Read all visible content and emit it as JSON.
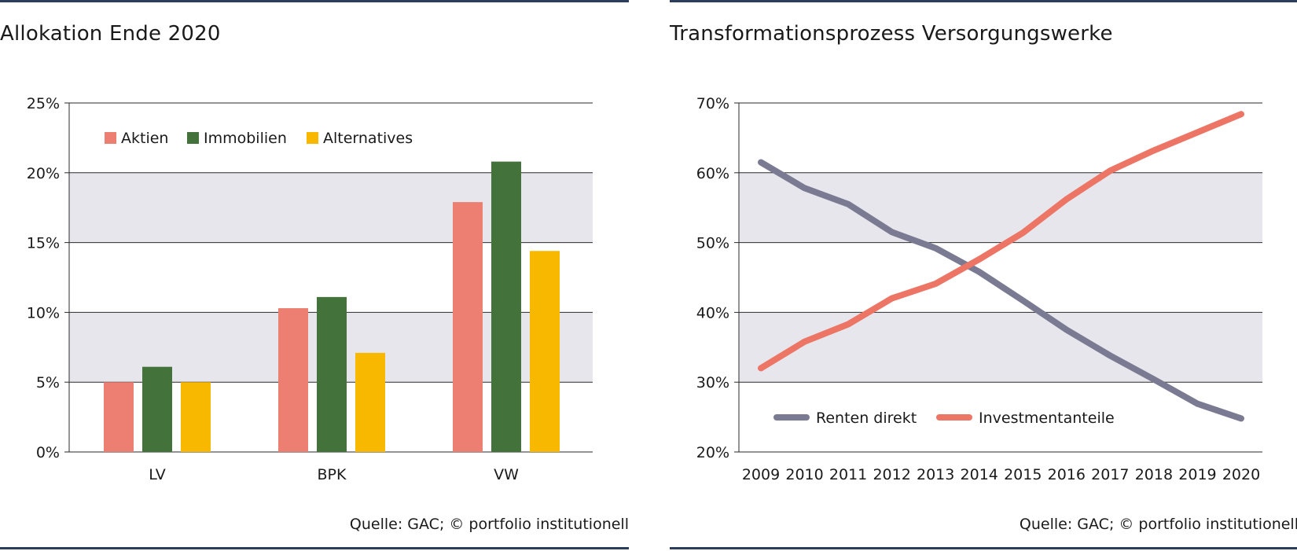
{
  "left": {
    "title": "Allokation Ende 2020",
    "source": "Quelle: GAC; © portfolio institutionell"
  },
  "right": {
    "title": "Transformationsprozess Versorgungswerke",
    "source": "Quelle: GAC; © portfolio institutionell"
  },
  "colors": {
    "band": "#e6e6ec",
    "aktien": "#ec7f72",
    "immobilien": "#43723a",
    "alternatives": "#f8b800",
    "renten": "#7a7b92",
    "investment": "#ec7565",
    "rule": "#2c3e5c"
  },
  "chart_data": [
    {
      "type": "bar",
      "title": "Allokation Ende 2020",
      "categories": [
        "LV",
        "BPK",
        "VW"
      ],
      "series": [
        {
          "name": "Aktien",
          "values": [
            5.0,
            10.3,
            17.9
          ],
          "color": "#ec7f72"
        },
        {
          "name": "Immobilien",
          "values": [
            6.1,
            11.1,
            20.8
          ],
          "color": "#43723a"
        },
        {
          "name": "Alternatives",
          "values": [
            5.0,
            7.1,
            14.4
          ],
          "color": "#f8b800"
        }
      ],
      "ylim": [
        0,
        25
      ],
      "yticks": [
        0,
        5,
        10,
        15,
        20,
        25
      ],
      "ytick_labels": [
        "0%",
        "5%",
        "10%",
        "15%",
        "20%",
        "25%"
      ],
      "legend_placement": "top-left",
      "grid": true
    },
    {
      "type": "line",
      "title": "Transformationsprozess Versorgungswerke",
      "x": [
        "2009",
        "2010",
        "2011",
        "2012",
        "2013",
        "2014",
        "2015",
        "2016",
        "2017",
        "2018",
        "2019",
        "2020"
      ],
      "series": [
        {
          "name": "Renten direkt",
          "values": [
            61.5,
            57.8,
            55.5,
            51.5,
            49.2,
            45.8,
            41.7,
            37.5,
            33.8,
            30.4,
            26.9,
            24.8
          ],
          "color": "#7a7b92"
        },
        {
          "name": "Investmentanteile",
          "values": [
            32.0,
            35.8,
            38.3,
            42.0,
            44.1,
            47.6,
            51.4,
            56.2,
            60.3,
            63.2,
            65.8,
            68.4
          ],
          "color": "#ec7565"
        }
      ],
      "ylim": [
        20,
        70
      ],
      "yticks": [
        20,
        30,
        40,
        50,
        60,
        70
      ],
      "ytick_labels": [
        "20%",
        "30%",
        "40%",
        "50%",
        "60%",
        "70%"
      ],
      "legend_placement": "bottom-left",
      "grid": true
    }
  ]
}
